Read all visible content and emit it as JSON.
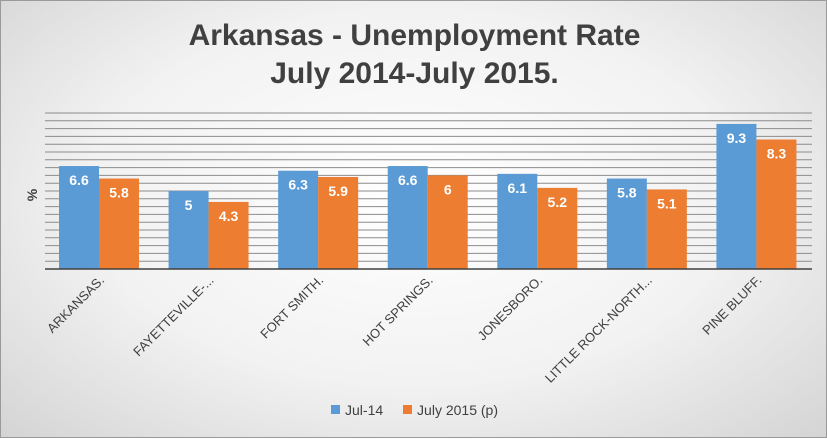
{
  "chart_data": {
    "type": "bar",
    "title_lines": [
      "Arkansas - Unemployment Rate",
      "July 2014-July 2015."
    ],
    "ylabel": "%",
    "xlabel": "",
    "ylim": [
      0,
      10
    ],
    "grid": true,
    "legend_position": "bottom",
    "categories": [
      "ARKANSAS.",
      "FAYETTEVILLE-...",
      "FORT SMITH.",
      "HOT SPRINGS.",
      "JONESBORO.",
      "LITTLE ROCK-NORTH...",
      "PINE BLUFF."
    ],
    "series": [
      {
        "name": "Jul-14",
        "color": "#5B9BD5",
        "values": [
          6.6,
          5,
          6.3,
          6.6,
          6.1,
          5.8,
          9.3
        ]
      },
      {
        "name": "July 2015 (p)",
        "color": "#ED7D31",
        "values": [
          5.8,
          4.3,
          5.9,
          6,
          5.2,
          5.1,
          8.3
        ]
      }
    ]
  }
}
